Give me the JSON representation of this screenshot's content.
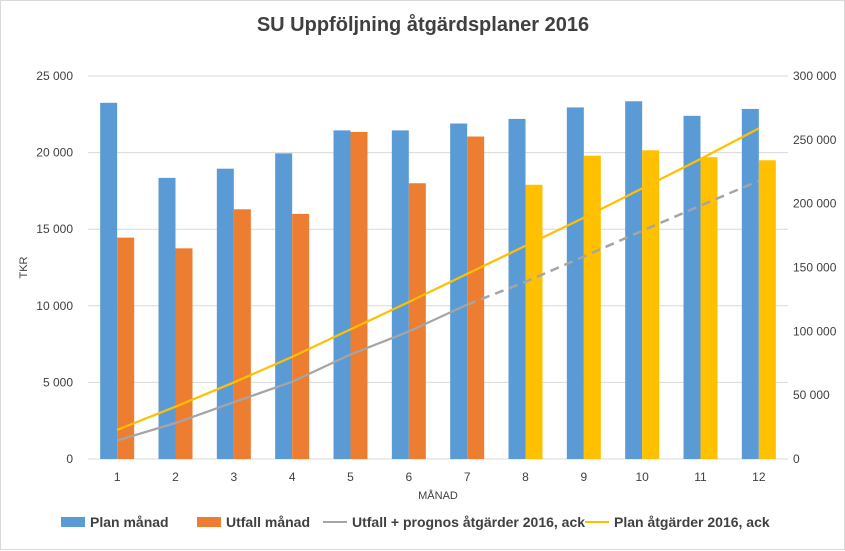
{
  "chart_data": {
    "type": "bar",
    "title": "SU Uppföljning åtgärdsplaner 2016",
    "xlabel": "MÅNAD",
    "ylabel": "TKR",
    "categories": [
      "1",
      "2",
      "3",
      "4",
      "5",
      "6",
      "7",
      "8",
      "9",
      "10",
      "11",
      "12"
    ],
    "ylim": [
      0,
      25000
    ],
    "y2lim": [
      0,
      300000
    ],
    "yticks": [
      "0",
      "5 000",
      "10 000",
      "15 000",
      "20 000",
      "25 000"
    ],
    "y2ticks": [
      "0",
      "50 000",
      "100 000",
      "150 000",
      "200 000",
      "250 000",
      "300 000"
    ],
    "grid": true,
    "legend_position": "bottom",
    "series": [
      {
        "name": "Plan månad",
        "kind": "bar",
        "axis": "left",
        "color": "#5B9BD5",
        "values": [
          23250,
          18350,
          18950,
          19950,
          21450,
          21450,
          21900,
          22200,
          22950,
          23350,
          22400,
          22850
        ]
      },
      {
        "name": "Utfall månad",
        "kind": "bar",
        "axis": "left",
        "color": "#ED7D31",
        "prognosis_color": "#FFC000",
        "prognosis_from_index": 7,
        "values": [
          14450,
          13750,
          16300,
          16000,
          21350,
          18000,
          21050,
          17900,
          19800,
          20150,
          19700,
          19500
        ]
      },
      {
        "name": "Utfall + prognos åtgärder 2016, ack",
        "kind": "line",
        "axis": "right",
        "color": "#A5A5A5",
        "dashed_from_index": 6,
        "values": [
          14450,
          28200,
          44500,
          60500,
          81850,
          99850,
          120900,
          138800,
          158600,
          178750,
          198450,
          217950
        ]
      },
      {
        "name": "Plan åtgärder 2016, ack",
        "kind": "line",
        "axis": "right",
        "color": "#FFC000",
        "values": [
          22800,
          41000,
          60000,
          80000,
          101500,
          123000,
          145000,
          167000,
          189000,
          212000,
          235000,
          259000
        ]
      }
    ]
  }
}
